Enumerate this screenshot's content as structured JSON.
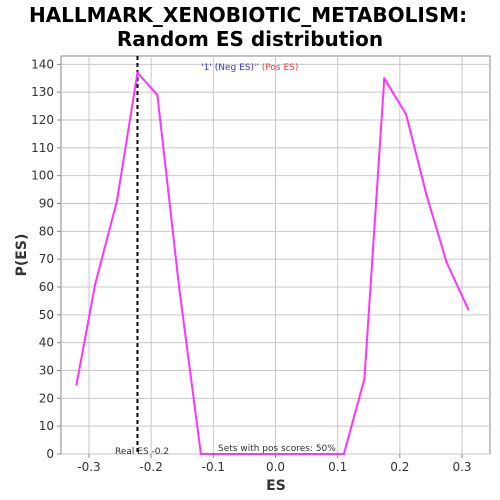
{
  "chart_data": {
    "type": "line",
    "title": "HALLMARK_XENOBIOTIC_METABOLISM:",
    "subtitle": "Random ES distribution",
    "xlabel": "ES",
    "ylabel": "P(ES)",
    "xlim": [
      -0.345,
      0.345
    ],
    "ylim": [
      0,
      143
    ],
    "x_ticks": [
      -0.3,
      -0.2,
      -0.1,
      0.0,
      0.1,
      0.2,
      0.3
    ],
    "x_tick_labels": [
      "-0.3",
      "-0.2",
      "-0.1",
      "0.0",
      "0.1",
      "0.2",
      "0.3"
    ],
    "y_ticks": [
      0,
      10,
      20,
      30,
      40,
      50,
      60,
      70,
      80,
      90,
      100,
      110,
      120,
      130,
      140
    ],
    "y_tick_labels": [
      "0",
      "10",
      "20",
      "30",
      "40",
      "50",
      "60",
      "70",
      "80",
      "90",
      "100",
      "110",
      "120",
      "130",
      "140"
    ],
    "grid": true,
    "series_color": "#ff33ff",
    "series": [
      {
        "x": [
          -0.32,
          -0.29,
          -0.255,
          -0.222,
          -0.19,
          -0.155,
          -0.12,
          -0.09,
          -0.055,
          -0.02,
          0.015,
          0.05,
          0.085,
          0.11,
          0.143,
          0.175,
          0.21,
          0.243,
          0.275,
          0.31
        ],
        "y": [
          25,
          61,
          91,
          137,
          129,
          60,
          0,
          0,
          0,
          0,
          0,
          0,
          0,
          0,
          27,
          135,
          122,
          93,
          69,
          52
        ]
      }
    ],
    "real_es": -0.222,
    "real_es_label": "Real ES -0.2",
    "pos_scores_label": "Sets with pos scores: 50%",
    "legend": [
      {
        "text": "'1' (Neg ES)",
        "color": "#3333ff"
      },
      {
        "text": "'' (Pos ES)",
        "color": "#ff3333"
      }
    ],
    "legend_position": "top-center"
  }
}
